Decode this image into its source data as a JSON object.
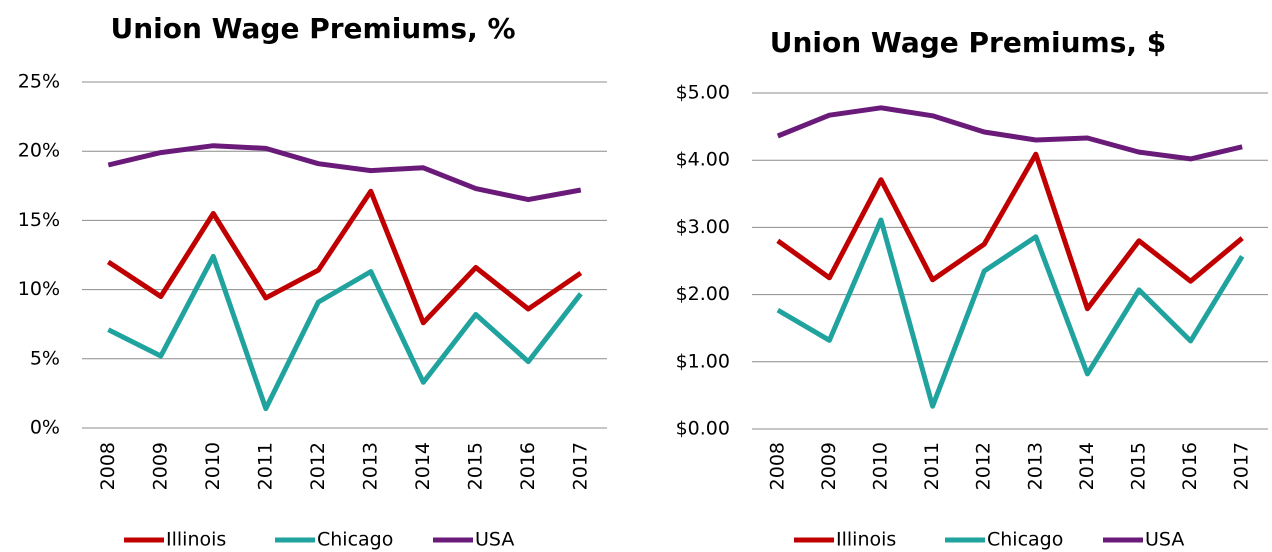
{
  "chart_data": [
    {
      "type": "line",
      "title": "Union Wage Premiums, %",
      "categories": [
        "2008",
        "2009",
        "2010",
        "2011",
        "2012",
        "2013",
        "2014",
        "2015",
        "2016",
        "2017"
      ],
      "series": [
        {
          "name": "Illinois",
          "color": "#c00000",
          "values": [
            12.0,
            9.5,
            15.5,
            9.4,
            11.4,
            17.1,
            7.6,
            11.6,
            8.6,
            11.2
          ]
        },
        {
          "name": "Chicago",
          "color": "#20a39e",
          "values": [
            7.1,
            5.2,
            12.4,
            1.4,
            9.1,
            11.3,
            3.3,
            8.2,
            4.8,
            9.7
          ]
        },
        {
          "name": "USA",
          "color": "#6a1b7a",
          "values": [
            19.0,
            19.9,
            20.4,
            20.2,
            19.1,
            18.6,
            18.8,
            17.3,
            16.5,
            17.2
          ]
        }
      ],
      "ylim": [
        0,
        25
      ],
      "yticks": [
        {
          "value": 0,
          "label": "0%"
        },
        {
          "value": 5,
          "label": "5%"
        },
        {
          "value": 10,
          "label": "10%"
        },
        {
          "value": 15,
          "label": "15%"
        },
        {
          "value": 20,
          "label": "20%"
        },
        {
          "value": 25,
          "label": "25%"
        }
      ],
      "grid": true,
      "legend": "bottom"
    },
    {
      "type": "line",
      "title": "Union Wage Premiums, $",
      "categories": [
        "2008",
        "2009",
        "2010",
        "2011",
        "2012",
        "2013",
        "2014",
        "2015",
        "2016",
        "2017"
      ],
      "series": [
        {
          "name": "Illinois",
          "color": "#c00000",
          "values": [
            2.8,
            2.25,
            3.71,
            2.22,
            2.75,
            4.09,
            1.79,
            2.8,
            2.2,
            2.84
          ]
        },
        {
          "name": "Chicago",
          "color": "#20a39e",
          "values": [
            1.77,
            1.32,
            3.11,
            0.34,
            2.35,
            2.86,
            0.82,
            2.07,
            1.31,
            2.57
          ]
        },
        {
          "name": "USA",
          "color": "#6a1b7a",
          "values": [
            4.36,
            4.67,
            4.78,
            4.66,
            4.42,
            4.3,
            4.33,
            4.12,
            4.02,
            4.2
          ]
        }
      ],
      "ylim": [
        0,
        5
      ],
      "yticks": [
        {
          "value": 0,
          "label": "$0.00"
        },
        {
          "value": 1,
          "label": "$1.00"
        },
        {
          "value": 2,
          "label": "$2.00"
        },
        {
          "value": 3,
          "label": "$3.00"
        },
        {
          "value": 4,
          "label": "$4.00"
        },
        {
          "value": 5,
          "label": "$5.00"
        }
      ],
      "grid": true,
      "legend": "bottom"
    }
  ]
}
